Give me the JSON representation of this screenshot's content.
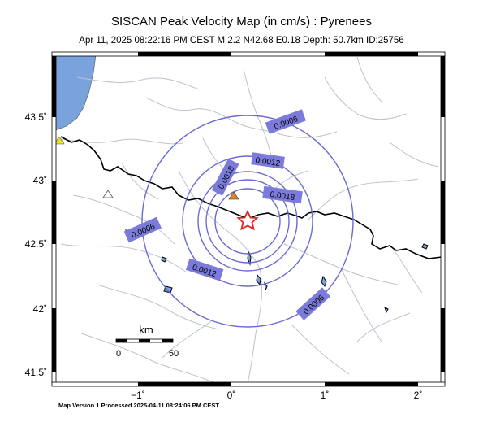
{
  "title": "SISCAN Peak Velocity Map (in cm/s) : Pyrenees",
  "subtitle": "Apr 11, 2025 08:22:16 PM CEST   M 2.2   N42.68 E0.18   Depth: 50.7km   ID:25756",
  "footer": "Map Version 1 Processed 2025-04-11 08:24:06 PM CEST",
  "axes": {
    "lat_ticks": [
      "43.5˚",
      "43˚",
      "42.5˚",
      "42˚",
      "41.5˚"
    ],
    "lon_ticks": [
      "−1˚",
      "0˚",
      "1˚",
      "2˚"
    ]
  },
  "scale_bar": {
    "unit": "km",
    "start": "0",
    "end": "50"
  },
  "contour_labels": {
    "c1": "0.0006",
    "c2": "0.0012",
    "c3": "0.0018",
    "c4": "0.0018",
    "c5": "0.0006",
    "c6": "0.0012",
    "c7": "0.0006"
  },
  "colors": {
    "contour": "#6a6ad4",
    "label_bg": "#7b7bdc",
    "sea": "#7aa2dc",
    "border": "#000000",
    "rivers": "#bcc3cc",
    "epicenter": "#e02020",
    "station_orange": "#e8821e",
    "station_yellow": "#e8e020"
  },
  "markers": {
    "epicenter": "star-icon",
    "stations": [
      "triangle-icon-orange",
      "triangle-icon-white",
      "triangle-icon-yellow"
    ]
  }
}
